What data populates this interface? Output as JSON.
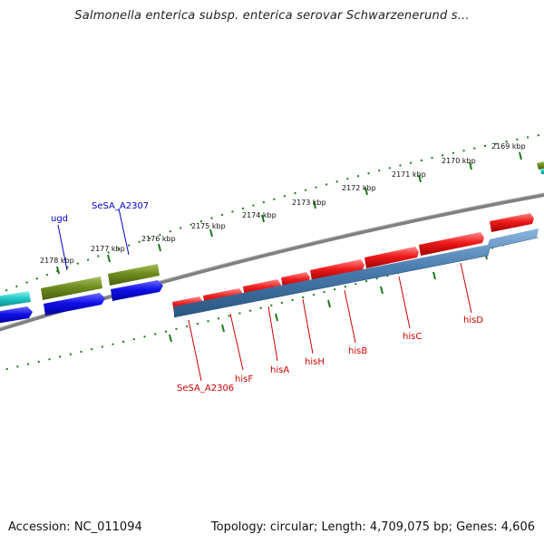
{
  "title": "Salmonella enterica subsp. enterica serovar Schwarzenerund s...",
  "footer": {
    "accession": "Accession: NC_011094",
    "summary": "Topology: circular; Length: 4,709,075 bp; Genes: 4,606"
  },
  "colors": {
    "backbone": "#808080",
    "tick": "#1a7a1a",
    "red_gene": "#e01010",
    "blue_gene": "#1010e0",
    "olive_gene": "#6e8c1e",
    "cyan_gene": "#20c8c8",
    "steel_gene": "#4a7db0",
    "red_label": "#cc0000",
    "blue_label": "#0000cc"
  },
  "kbp_labels": [
    "2169 kbp",
    "2170 kbp",
    "2171 kbp",
    "2172 kbp",
    "2173 kbp",
    "2174 kbp",
    "2175 kbp",
    "2176 kbp",
    "2177 kbp",
    "2178 kbp"
  ],
  "gene_labels_top": [
    "ugd",
    "SeSA_A2307"
  ],
  "gene_labels_bottom": [
    "SeSA_A2306",
    "hisF",
    "hisA",
    "hisH",
    "hisB",
    "hisC",
    "hisD"
  ]
}
